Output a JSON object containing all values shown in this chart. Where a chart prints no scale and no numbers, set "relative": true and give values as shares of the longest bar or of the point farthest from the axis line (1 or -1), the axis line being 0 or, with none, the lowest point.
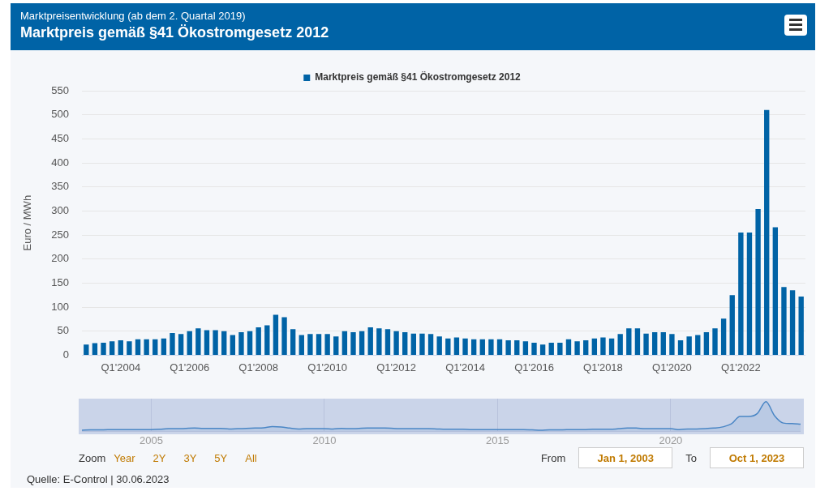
{
  "chart_data": [
    {
      "type": "bar",
      "subtitle": "Marktpreisentwicklung (ab dem 2. Quartal 2019)",
      "title": "Marktpreis gemäß §41 Ökostromgesetz 2012",
      "ylabel": "Euro / MWh",
      "categories": [
        null,
        null,
        null,
        null,
        "Q1'2004",
        null,
        null,
        null,
        null,
        null,
        null,
        null,
        "Q1'2006",
        null,
        null,
        null,
        null,
        null,
        null,
        null,
        "Q1'2008",
        null,
        null,
        null,
        null,
        null,
        null,
        null,
        "Q1'2010",
        null,
        null,
        null,
        null,
        null,
        null,
        null,
        "Q1'2012",
        null,
        null,
        null,
        null,
        null,
        null,
        null,
        "Q1'2014",
        null,
        null,
        null,
        null,
        null,
        null,
        null,
        "Q1'2016",
        null,
        null,
        null,
        null,
        null,
        null,
        null,
        "Q1'2018",
        null,
        null,
        null,
        null,
        null,
        null,
        null,
        "Q1'2020",
        null,
        null,
        null,
        null,
        null,
        null,
        null,
        "Q1'2022",
        null,
        null,
        null,
        null,
        null,
        null,
        null
      ],
      "series": [
        {
          "name": "Marktpreis gemäß §41 Ökostromgesetz 2012",
          "color": "#0063a6",
          "values": [
            22,
            25,
            26,
            29,
            31,
            29,
            33,
            33,
            33,
            35,
            46,
            44,
            50,
            56,
            52,
            52,
            50,
            42,
            48,
            50,
            58,
            62,
            84,
            79,
            54,
            42,
            44,
            44,
            44,
            39,
            50,
            48,
            50,
            58,
            56,
            54,
            50,
            48,
            45,
            45,
            44,
            39,
            35,
            37,
            35,
            33,
            33,
            33,
            33,
            31,
            31,
            29,
            26,
            22,
            26,
            26,
            33,
            29,
            31,
            35,
            37,
            35,
            44,
            56,
            56,
            45,
            48,
            48,
            44,
            31,
            39,
            42,
            48,
            56,
            76,
            125,
            255,
            255,
            304,
            510,
            266,
            142,
            135,
            122
          ]
        }
      ],
      "ylim": [
        0,
        550
      ],
      "yticks": [
        0,
        50,
        100,
        150,
        200,
        250,
        300,
        350,
        400,
        450,
        500,
        550
      ],
      "grid": "y",
      "legend": "top",
      "annotations": [
        "Quelle: E-Control | 30.06.2023"
      ]
    },
    {
      "type": "area",
      "relative": true,
      "grid": "x",
      "legend": false,
      "categories": [
        null,
        null,
        null,
        null,
        null,
        null,
        null,
        null,
        "2005",
        null,
        null,
        null,
        null,
        null,
        null,
        null,
        null,
        null,
        null,
        null,
        null,
        null,
        null,
        null,
        null,
        null,
        null,
        null,
        "2010",
        null,
        null,
        null,
        null,
        null,
        null,
        null,
        null,
        null,
        null,
        null,
        null,
        null,
        null,
        null,
        null,
        null,
        null,
        null,
        "2015",
        null,
        null,
        null,
        null,
        null,
        null,
        null,
        null,
        null,
        null,
        null,
        null,
        null,
        null,
        null,
        null,
        null,
        null,
        null,
        "2020",
        null,
        null,
        null,
        null,
        null,
        null,
        null,
        null,
        null,
        null,
        null,
        null,
        null,
        null,
        null
      ],
      "series": [
        {
          "color": "#4a86c5",
          "values": [
            0.04,
            0.05,
            0.05,
            0.06,
            0.06,
            0.06,
            0.06,
            0.06,
            0.06,
            0.07,
            0.09,
            0.09,
            0.1,
            0.11,
            0.1,
            0.1,
            0.1,
            0.08,
            0.09,
            0.1,
            0.11,
            0.12,
            0.16,
            0.15,
            0.11,
            0.08,
            0.09,
            0.09,
            0.09,
            0.08,
            0.1,
            0.09,
            0.1,
            0.11,
            0.11,
            0.11,
            0.1,
            0.09,
            0.09,
            0.09,
            0.09,
            0.08,
            0.07,
            0.07,
            0.07,
            0.06,
            0.06,
            0.06,
            0.06,
            0.06,
            0.06,
            0.06,
            0.05,
            0.04,
            0.05,
            0.05,
            0.06,
            0.06,
            0.06,
            0.07,
            0.07,
            0.07,
            0.09,
            0.11,
            0.11,
            0.09,
            0.09,
            0.09,
            0.09,
            0.06,
            0.08,
            0.08,
            0.09,
            0.11,
            0.15,
            0.25,
            0.5,
            0.5,
            0.6,
            1,
            0.52,
            0.28,
            0.26,
            0.24
          ]
        }
      ],
      "annotations": [
        "Zoom",
        "Year",
        "2Y",
        "3Y",
        "5Y",
        "All",
        "From",
        "Jan 1, 2003",
        "To",
        "Oct 1, 2023"
      ]
    }
  ]
}
